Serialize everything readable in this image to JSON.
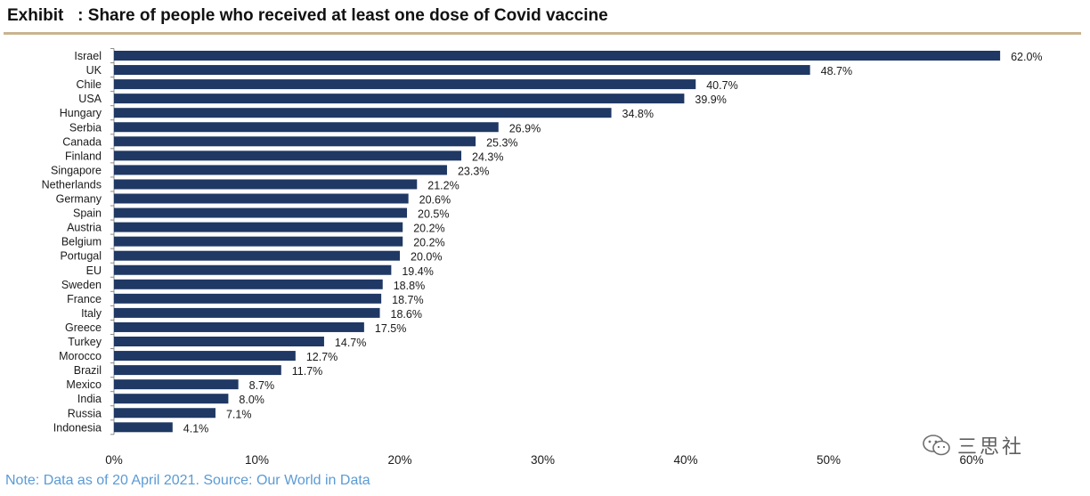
{
  "header": {
    "title": "Exhibit   : Share of people who received at least one dose of Covid vaccine"
  },
  "footer": {
    "note": "Note: Data as of 20 April 2021. Source: Our World in Data"
  },
  "watermark": {
    "text": "三思社",
    "icon": "wechat-icon"
  },
  "chart_data": {
    "type": "bar",
    "orientation": "horizontal",
    "title": "Share of people who received at least one dose of Covid vaccine",
    "categories": [
      "Israel",
      "UK",
      "Chile",
      "USA",
      "Hungary",
      "Serbia",
      "Canada",
      "Finland",
      "Singapore",
      "Netherlands",
      "Germany",
      "Spain",
      "Austria",
      "Belgium",
      "Portugal",
      "EU",
      "Sweden",
      "France",
      "Italy",
      "Greece",
      "Turkey",
      "Morocco",
      "Brazil",
      "Mexico",
      "India",
      "Russia",
      "Indonesia"
    ],
    "values": [
      62.0,
      48.7,
      40.7,
      39.9,
      34.8,
      26.9,
      25.3,
      24.3,
      23.3,
      21.2,
      20.6,
      20.5,
      20.2,
      20.2,
      20.0,
      19.4,
      18.8,
      18.7,
      18.6,
      17.5,
      14.7,
      12.7,
      11.7,
      8.7,
      8.0,
      7.1,
      4.1
    ],
    "value_labels": [
      "62.0%",
      "48.7%",
      "40.7%",
      "39.9%",
      "34.8%",
      "26.9%",
      "25.3%",
      "24.3%",
      "23.3%",
      "21.2%",
      "20.6%",
      "20.5%",
      "20.2%",
      "20.2%",
      "20.0%",
      "19.4%",
      "18.8%",
      "18.7%",
      "18.6%",
      "17.5%",
      "14.7%",
      "12.7%",
      "11.7%",
      "8.7%",
      "8.0%",
      "7.1%",
      "4.1%"
    ],
    "xlim": [
      0,
      60
    ],
    "xticks": [
      0,
      10,
      20,
      30,
      40,
      50,
      60
    ],
    "xtick_labels": [
      "0%",
      "10%",
      "20%",
      "30%",
      "40%",
      "50%",
      "60%"
    ],
    "bar_color": "#1f3864",
    "grid": false,
    "legend": "none"
  }
}
